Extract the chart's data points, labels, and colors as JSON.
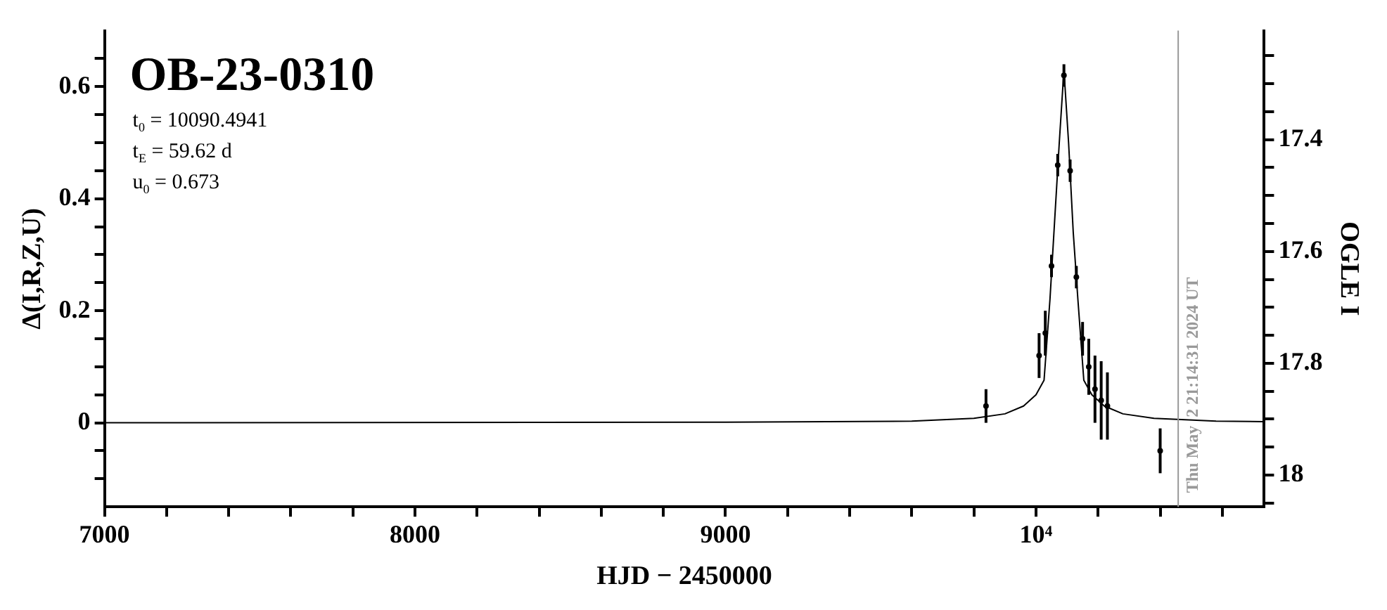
{
  "chart_data": {
    "type": "scatter",
    "title": "OB-23-0310",
    "xlabel": "HJD − 2450000",
    "ylabel": "Δ(I,R,Z,U)",
    "y2label": "OGLE I",
    "annotations": [
      "t$_{0}$ = 10090.4941",
      "t$_{E}$ = 59.62 d",
      "u$_{0}$ = 0.673",
      {
        "text": "Thu May  2 21:14:31 2024 UT"
      }
    ],
    "xlim": [
      7000,
      10735
    ],
    "xticks": [
      7000,
      {
        "value": 7200,
        "label": null
      },
      {
        "value": 7400,
        "label": null
      },
      {
        "value": 7600,
        "label": null
      },
      {
        "value": 7800,
        "label": null
      },
      8000,
      {
        "value": 8200,
        "label": null
      },
      {
        "value": 8400,
        "label": null
      },
      {
        "value": 8600,
        "label": null
      },
      {
        "value": 8800,
        "label": null
      },
      9000,
      {
        "value": 9200,
        "label": null
      },
      {
        "value": 9400,
        "label": null
      },
      {
        "value": 9600,
        "label": null
      },
      {
        "value": 9800,
        "label": null
      },
      {
        "value": 10000,
        "label": "10⁴"
      },
      {
        "value": 10200,
        "label": null
      },
      {
        "value": 10400,
        "label": null
      },
      {
        "value": 10600,
        "label": null
      }
    ],
    "ylim": [
      -0.15,
      0.7
    ],
    "yticks": [
      {
        "value": -0.1,
        "label": null
      },
      {
        "value": -0.05,
        "label": null
      },
      0,
      {
        "value": 0.05,
        "label": null
      },
      {
        "value": 0.1,
        "label": null
      },
      {
        "value": 0.15,
        "label": null
      },
      0.2,
      {
        "value": 0.25,
        "label": null
      },
      {
        "value": 0.3,
        "label": null
      },
      {
        "value": 0.35,
        "label": null
      },
      0.4,
      {
        "value": 0.45,
        "label": null
      },
      {
        "value": 0.5,
        "label": null
      },
      {
        "value": 0.55,
        "label": null
      },
      0.6,
      {
        "value": 0.65,
        "label": null
      }
    ],
    "y2lim": [
      18.057,
      17.205
    ],
    "y2ticks": [
      {
        "value": 18.05,
        "label": null
      },
      18,
      {
        "value": 17.95,
        "label": null
      },
      {
        "value": 17.9,
        "label": null
      },
      {
        "value": 17.85,
        "label": null
      },
      17.8,
      {
        "value": 17.75,
        "label": null
      },
      {
        "value": 17.7,
        "label": null
      },
      {
        "value": 17.65,
        "label": null
      },
      17.6,
      {
        "value": 17.55,
        "label": null
      },
      {
        "value": 17.5,
        "label": null
      },
      {
        "value": 17.45,
        "label": null
      },
      17.4,
      {
        "value": 17.35,
        "label": null
      },
      {
        "value": 17.3,
        "label": null
      },
      {
        "value": 17.25,
        "label": null
      }
    ],
    "ref_lines": [
      {
        "axis": "x",
        "value": 10458,
        "color": "#999999"
      }
    ],
    "legend": false,
    "series": [
      {
        "type": "line",
        "color": "#000000",
        "x": [
          7000,
          9000,
          9600,
          9800,
          9900,
          9960,
          10000,
          10026,
          10045,
          10060,
          10075,
          10090,
          10105,
          10120,
          10135,
          10154,
          10180,
          10220,
          10280,
          10380,
          10580,
          10735
        ],
        "values": [
          0,
          0.001,
          0.003,
          0.008,
          0.016,
          0.03,
          0.05,
          0.076,
          0.22,
          0.36,
          0.5,
          0.63,
          0.5,
          0.34,
          0.22,
          0.076,
          0.05,
          0.03,
          0.016,
          0.008,
          0.003,
          0.002
        ]
      },
      {
        "color": "#000000",
        "marker": "circle",
        "x": [
          9839,
          10010,
          10030,
          10050,
          10070,
          10090,
          10110,
          10130,
          10150,
          10170,
          10190,
          10210,
          10230,
          10400
        ],
        "values": [
          0.03,
          0.12,
          0.16,
          0.28,
          0.46,
          0.62,
          0.45,
          0.26,
          0.15,
          0.1,
          0.06,
          0.04,
          0.03,
          -0.05
        ],
        "errors": [
          0.03,
          0.04,
          0.04,
          0.02,
          0.02,
          0.02,
          0.02,
          0.02,
          0.03,
          0.05,
          0.06,
          0.07,
          0.06,
          0.04
        ]
      }
    ]
  }
}
